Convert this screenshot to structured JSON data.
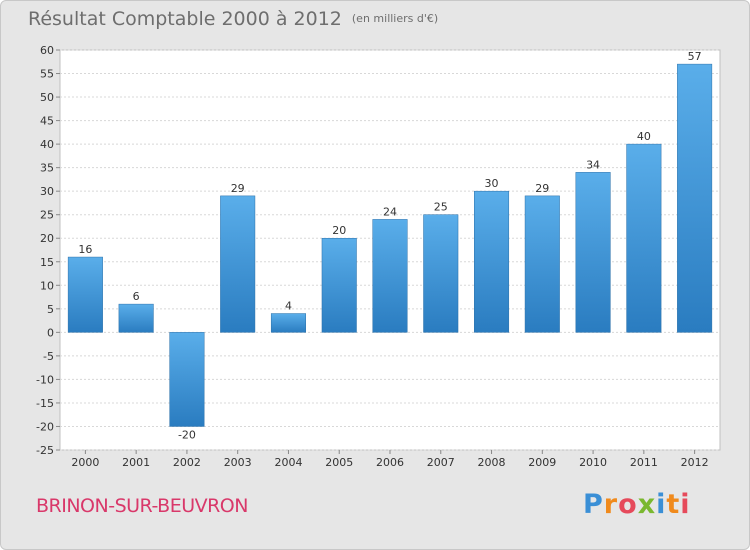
{
  "chart_data": {
    "type": "bar",
    "title": "Résultat Comptable 2000 à 2012",
    "unit": "(en milliers d'€)",
    "categories": [
      "2000",
      "2001",
      "2002",
      "2003",
      "2004",
      "2005",
      "2006",
      "2007",
      "2008",
      "2009",
      "2010",
      "2011",
      "2012"
    ],
    "values": [
      16,
      6,
      -20,
      29,
      4,
      20,
      24,
      25,
      30,
      29,
      34,
      40,
      57
    ],
    "ylim": [
      -25,
      60
    ],
    "yticks": [
      60,
      55,
      50,
      45,
      40,
      35,
      30,
      25,
      20,
      15,
      10,
      5,
      0,
      -5,
      -10,
      -15,
      -20,
      -25
    ],
    "grid": true,
    "bar_color_top": "#5aaeea",
    "bar_color_bottom": "#2a7cc0"
  },
  "footer": {
    "commune": "BRINON-SUR-BEUVRON",
    "brand_letters": [
      "P",
      "r",
      "o",
      "x",
      "i",
      "t",
      "i"
    ]
  }
}
